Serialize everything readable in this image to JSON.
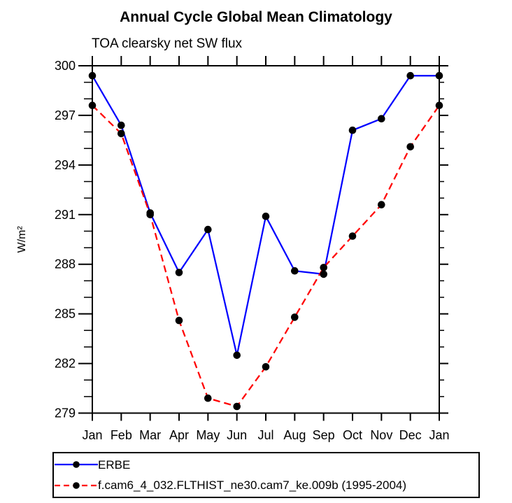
{
  "page": {
    "background": "#ffffff",
    "text_color": "#000000"
  },
  "chart_data": {
    "type": "line",
    "title": "Annual Cycle Global Mean Climatology",
    "subtitle": "TOA clearsky net SW flux",
    "ylabel": "W/m²",
    "x_tick_labels": [
      "Jan",
      "Feb",
      "Mar",
      "Apr",
      "May",
      "Jun",
      "Jul",
      "Aug",
      "Sep",
      "Oct",
      "Nov",
      "Dec",
      "Jan"
    ],
    "ylim": [
      279,
      300
    ],
    "y_major_step": 3,
    "y_minor_step": 1,
    "grid": false,
    "frame": "closed-box-outward-ticks",
    "legend_position": "bottom-left-box",
    "marker": "filled-circle",
    "marker_color": "#000000",
    "series": [
      {
        "name": "ERBE",
        "color": "#0000ff",
        "line_style": "solid",
        "values": [
          299.4,
          296.4,
          291.1,
          287.5,
          290.1,
          282.5,
          290.9,
          287.6,
          287.4,
          296.1,
          296.8,
          299.4,
          299.4
        ]
      },
      {
        "name": "f.cam6_4_032.FLTHIST_ne30.cam7_ke.009b (1995-2004)",
        "color": "#ff0000",
        "line_style": "dashed",
        "values": [
          297.6,
          295.9,
          291.0,
          284.6,
          279.9,
          279.4,
          281.8,
          284.8,
          287.8,
          289.7,
          291.6,
          295.1,
          297.6
        ]
      }
    ]
  }
}
